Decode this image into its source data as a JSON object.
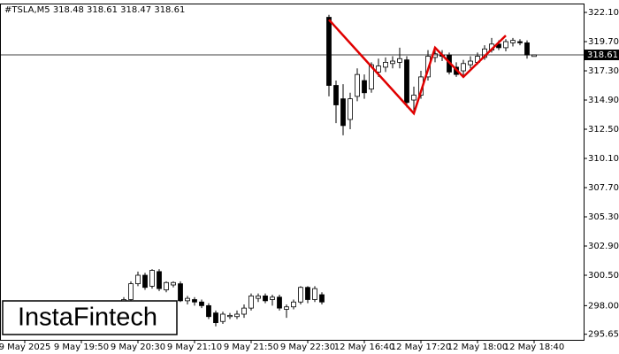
{
  "chart_data": {
    "type": "candlestick",
    "title": "#TSLA,M5  318.48 318.61 318.47 318.61",
    "watermark": "InstaFintech",
    "categories": [
      null,
      null,
      null,
      "9 May 2025",
      null,
      null,
      null,
      null,
      null,
      null,
      null,
      "9 May 19:50",
      null,
      null,
      null,
      null,
      null,
      null,
      null,
      "9 May 20:30",
      null,
      null,
      null,
      null,
      null,
      null,
      null,
      "9 May 21:10",
      null,
      null,
      null,
      null,
      null,
      null,
      null,
      "9 May 21:50",
      null,
      null,
      null,
      null,
      null,
      null,
      null,
      "9 May 22:30",
      null,
      null,
      null,
      null,
      null,
      null,
      null,
      "12 May 16:40",
      null,
      null,
      null,
      null,
      null,
      null,
      null,
      "12 May 17:20",
      null,
      null,
      null,
      null,
      null,
      null,
      null,
      "12 May 18:00",
      null,
      null,
      null,
      null,
      null,
      null,
      null,
      "12 May 18:40"
    ],
    "open": [
      null,
      null,
      null,
      null,
      null,
      null,
      null,
      null,
      null,
      null,
      null,
      null,
      null,
      null,
      null,
      null,
      null,
      298.3,
      298.5,
      299.8,
      300.5,
      299.6,
      300.8,
      299.3,
      299.7,
      299.8,
      298.4,
      298.5,
      298.3,
      298.0,
      297.4,
      296.7,
      297.1,
      297.1,
      297.3,
      297.8,
      298.6,
      298.8,
      298.5,
      298.7,
      297.7,
      297.9,
      298.3,
      299.5,
      298.5,
      298.9,
      321.7,
      316.1,
      315.0,
      313.3,
      315.2,
      316.5,
      315.8,
      317.2,
      317.6,
      317.9,
      318.0,
      318.2,
      314.9,
      315.3,
      316.8,
      318.4,
      318.6,
      318.6,
      317.6,
      317.3,
      317.8,
      318.0,
      318.4,
      319.0,
      319.5,
      319.2,
      319.6,
      319.7,
      319.6,
      318.48
    ],
    "high": [
      null,
      null,
      null,
      null,
      null,
      null,
      null,
      null,
      null,
      null,
      null,
      null,
      null,
      null,
      null,
      null,
      null,
      298.7,
      300.0,
      300.8,
      300.7,
      301.0,
      301.0,
      300.0,
      300.0,
      300.0,
      298.8,
      298.7,
      298.5,
      298.2,
      297.6,
      297.5,
      297.4,
      297.6,
      298.1,
      299.0,
      299.0,
      299.0,
      298.9,
      298.9,
      298.1,
      298.5,
      299.6,
      299.6,
      299.6,
      299.1,
      321.9,
      316.5,
      316.2,
      315.5,
      317.5,
      317.0,
      318.0,
      318.3,
      318.4,
      318.5,
      319.2,
      318.5,
      316.0,
      317.3,
      319.0,
      319.2,
      319.0,
      318.8,
      318.0,
      318.2,
      318.5,
      318.8,
      319.4,
      320.0,
      319.8,
      319.9,
      320.0,
      319.9,
      319.8,
      318.61
    ],
    "low": [
      null,
      null,
      null,
      null,
      null,
      null,
      null,
      null,
      null,
      null,
      null,
      null,
      null,
      null,
      null,
      null,
      null,
      298.1,
      298.3,
      299.6,
      299.3,
      299.4,
      299.2,
      299.1,
      299.5,
      298.3,
      298.1,
      298.0,
      297.8,
      296.9,
      296.3,
      296.5,
      296.9,
      296.9,
      297.0,
      297.6,
      298.3,
      298.2,
      298.0,
      297.6,
      297.0,
      297.7,
      298.1,
      298.2,
      298.3,
      298.1,
      315.2,
      313.0,
      312.0,
      312.5,
      314.8,
      315.0,
      315.5,
      316.8,
      317.2,
      317.5,
      317.5,
      314.3,
      313.8,
      315.0,
      316.5,
      318.0,
      318.1,
      317.0,
      316.8,
      316.9,
      317.5,
      317.8,
      318.2,
      318.8,
      319.0,
      318.9,
      319.3,
      319.4,
      318.3,
      318.47
    ],
    "close": [
      null,
      null,
      null,
      null,
      null,
      null,
      null,
      null,
      null,
      null,
      null,
      null,
      null,
      null,
      null,
      null,
      null,
      298.5,
      299.8,
      300.5,
      299.5,
      300.9,
      299.4,
      299.9,
      299.9,
      298.4,
      298.6,
      298.3,
      298.0,
      297.1,
      296.6,
      297.3,
      297.2,
      297.3,
      297.8,
      298.8,
      298.8,
      298.4,
      298.7,
      297.8,
      297.9,
      298.3,
      299.5,
      298.5,
      299.4,
      298.3,
      316.1,
      314.5,
      312.8,
      315.0,
      317.0,
      315.5,
      317.8,
      317.7,
      318.0,
      318.1,
      318.3,
      314.7,
      315.3,
      316.8,
      318.5,
      318.7,
      318.5,
      317.2,
      317.0,
      317.9,
      318.1,
      318.5,
      319.1,
      319.5,
      319.2,
      319.7,
      319.8,
      319.6,
      318.6,
      318.61
    ],
    "bull_color": "#ffffff",
    "bear_color": "#000000",
    "pattern": {
      "color": "#e00000",
      "x": [
        46,
        58,
        61,
        65,
        71
      ],
      "values": [
        321.5,
        313.8,
        319.2,
        316.8,
        320.2
      ]
    },
    "price_line": 318.61,
    "ylim": [
      295.19,
      322.83
    ],
    "yticks": [
      {
        "value": 322.1,
        "label": "322.10"
      },
      {
        "value": 319.7,
        "label": "319.70"
      },
      {
        "value": 317.3,
        "label": "317.30"
      },
      {
        "value": 314.9,
        "label": "314.90"
      },
      {
        "value": 312.5,
        "label": "312.50"
      },
      {
        "value": 310.1,
        "label": "310.10"
      },
      {
        "value": 307.7,
        "label": "307.70"
      },
      {
        "value": 305.3,
        "label": "305.30"
      },
      {
        "value": 302.9,
        "label": "302.90"
      },
      {
        "value": 300.5,
        "label": "300.50"
      },
      {
        "value": 298,
        "label": "298.00"
      },
      295.65
    ]
  }
}
